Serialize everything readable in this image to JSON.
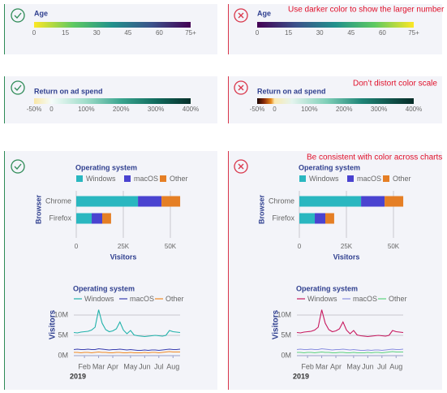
{
  "chart_data": [
    {
      "type": "colorscale",
      "title": "Age",
      "xlim": [
        0,
        75
      ],
      "xticks": [
        0,
        15,
        30,
        45,
        60,
        {
          "value": 75,
          "label": "75+"
        }
      ],
      "color_stops": [
        [
          0,
          "#fde725"
        ],
        [
          18.75,
          "#5ec962"
        ],
        [
          37.5,
          "#21918c"
        ],
        [
          56.25,
          "#3b528b"
        ],
        [
          75,
          "#440154"
        ]
      ]
    },
    {
      "type": "colorscale",
      "title": "Age",
      "annotation": "Use darker color to show the larger number",
      "xlim": [
        0,
        75
      ],
      "xticks": [
        0,
        15,
        30,
        45,
        60,
        {
          "value": 75,
          "label": "75+"
        }
      ],
      "color_stops": [
        [
          0,
          "#440154"
        ],
        [
          18.75,
          "#3b528b"
        ],
        [
          37.5,
          "#21918c"
        ],
        [
          56.25,
          "#5ec962"
        ],
        [
          75,
          "#fde725"
        ]
      ]
    },
    {
      "type": "colorscale",
      "title": "Return on ad spend",
      "xlim": [
        -50,
        400
      ],
      "xticks": [
        {
          "value": -50,
          "label": "-50%"
        },
        0,
        {
          "value": 100,
          "label": "100%"
        },
        {
          "value": 200,
          "label": "200%"
        },
        {
          "value": 300,
          "label": "300%"
        },
        {
          "value": 400,
          "label": "400%"
        }
      ],
      "color_stops": [
        [
          -50,
          "#f9e7a6"
        ],
        [
          0,
          "#f4fbf9"
        ],
        [
          100,
          "#9fdcc9"
        ],
        [
          200,
          "#3aa58f"
        ],
        [
          300,
          "#116b5e"
        ],
        [
          400,
          "#07302b"
        ]
      ]
    },
    {
      "type": "colorscale",
      "title": "Return on ad spend",
      "annotation": "Don’t distort color scale",
      "xlim": [
        -50,
        400
      ],
      "xticks": [
        {
          "value": -50,
          "label": "-50%"
        },
        0,
        {
          "value": 100,
          "label": "100%"
        },
        {
          "value": 200,
          "label": "200%"
        },
        {
          "value": 300,
          "label": "300%"
        },
        {
          "value": 400,
          "label": "400%"
        }
      ],
      "color_stops": [
        [
          -50,
          "#1a0500"
        ],
        [
          -30,
          "#8a2b0a"
        ],
        [
          -10,
          "#e8891c"
        ],
        [
          0,
          "#fbe9b0"
        ],
        [
          50,
          "#e4f4ee"
        ],
        [
          150,
          "#7fcfb8"
        ],
        [
          250,
          "#1f8577"
        ],
        [
          400,
          "#062c28"
        ]
      ]
    },
    {
      "type": "bar",
      "orientation": "horizontal",
      "stacked": true,
      "title": "Operating system",
      "y_label": "Browser",
      "x_label": "Visitors",
      "categories": [
        "Chrome",
        "Firefox"
      ],
      "xlim": [
        0,
        55000
      ],
      "xticks": [
        0,
        {
          "value": 25000,
          "label": "25K"
        },
        {
          "value": 50000,
          "label": "50K"
        }
      ],
      "series": [
        {
          "name": "Windows",
          "color": "#2ab7c0",
          "values": [
            32800,
            8200
          ]
        },
        {
          "name": "macOS",
          "color": "#4a43d0",
          "values": [
            12500,
            5600
          ]
        },
        {
          "name": "Other",
          "color": "#e57f25",
          "values": [
            9900,
            4700
          ]
        }
      ]
    },
    {
      "type": "bar",
      "orientation": "horizontal",
      "stacked": true,
      "title": "Operating system",
      "y_label": "Browser",
      "x_label": "Visitors",
      "annotation": "Be consistent with color across charts",
      "categories": [
        "Chrome",
        "Firefox"
      ],
      "xlim": [
        0,
        55000
      ],
      "xticks": [
        0,
        {
          "value": 25000,
          "label": "25K"
        },
        {
          "value": 50000,
          "label": "50K"
        }
      ],
      "series": [
        {
          "name": "Windows",
          "color": "#2ab7c0",
          "values": [
            32800,
            8200
          ]
        },
        {
          "name": "macOS",
          "color": "#4a43d0",
          "values": [
            12500,
            5600
          ]
        },
        {
          "name": "Other",
          "color": "#e57f25",
          "values": [
            9900,
            4700
          ]
        }
      ]
    },
    {
      "type": "line",
      "title": "Operating system",
      "y_label": "Visitors",
      "x_sublabel": "2019",
      "categories": [
        null,
        null,
        null,
        "Feb",
        null,
        null,
        null,
        "Mar",
        null,
        null,
        null,
        "Apr",
        null,
        null,
        null,
        null,
        "May",
        null,
        null,
        null,
        "Jun",
        null,
        null,
        null,
        "Jul",
        null,
        null,
        null,
        "Aug",
        null,
        null
      ],
      "ylim": [
        0,
        12000000
      ],
      "yticks": [
        {
          "value": 0,
          "label": "0M"
        },
        {
          "value": 5000000,
          "label": "5M"
        },
        {
          "value": 10000000,
          "label": "10M"
        }
      ],
      "series": [
        {
          "name": "Windows",
          "color": "#20b2aa",
          "values": [
            5700000,
            5600000,
            5800000,
            5900000,
            6000000,
            6300000,
            7000000,
            11300000,
            8000000,
            6400000,
            5900000,
            6100000,
            6600000,
            8300000,
            6300000,
            5400000,
            6200000,
            5100000,
            4900000,
            4800000,
            4700000,
            4800000,
            4900000,
            5000000,
            4900000,
            4800000,
            5000000,
            6200000,
            5900000,
            5800000,
            5700000
          ]
        },
        {
          "name": "macOS",
          "color": "#3a3fb0",
          "values": [
            1500000,
            1600000,
            1500000,
            1500000,
            1600000,
            1500000,
            1500000,
            1700000,
            1600000,
            1500000,
            1400000,
            1500000,
            1500000,
            1600000,
            1500000,
            1400000,
            1500000,
            1400000,
            1300000,
            1300000,
            1400000,
            1300000,
            1400000,
            1400000,
            1300000,
            1400000,
            1500000,
            1600000,
            1500000,
            1500000,
            1600000
          ]
        },
        {
          "name": "Other",
          "color": "#f08a24",
          "values": [
            800000,
            800000,
            700000,
            800000,
            800000,
            700000,
            800000,
            900000,
            800000,
            800000,
            700000,
            700000,
            800000,
            800000,
            700000,
            700000,
            800000,
            700000,
            700000,
            700000,
            800000,
            700000,
            800000,
            800000,
            700000,
            800000,
            900000,
            1000000,
            900000,
            900000,
            900000
          ]
        }
      ]
    },
    {
      "type": "line",
      "title": "Operating system",
      "y_label": "Visitors",
      "x_sublabel": "2019",
      "categories": [
        null,
        null,
        null,
        "Feb",
        null,
        null,
        null,
        "Mar",
        null,
        null,
        null,
        "Apr",
        null,
        null,
        null,
        null,
        "May",
        null,
        null,
        null,
        "Jun",
        null,
        null,
        null,
        "Jul",
        null,
        null,
        null,
        "Aug",
        null,
        null
      ],
      "ylim": [
        0,
        12000000
      ],
      "yticks": [
        {
          "value": 0,
          "label": "0M"
        },
        {
          "value": 5000000,
          "label": "5M"
        },
        {
          "value": 10000000,
          "label": "10M"
        }
      ],
      "series": [
        {
          "name": "Windows",
          "color": "#c8185e",
          "values": [
            5700000,
            5600000,
            5800000,
            5900000,
            6000000,
            6300000,
            7000000,
            11300000,
            8000000,
            6400000,
            5900000,
            6100000,
            6600000,
            8300000,
            6300000,
            5400000,
            6200000,
            5100000,
            4900000,
            4800000,
            4700000,
            4800000,
            4900000,
            5000000,
            4900000,
            4800000,
            5000000,
            6200000,
            5900000,
            5800000,
            5700000
          ]
        },
        {
          "name": "macOS",
          "color": "#8a8fe0",
          "values": [
            1500000,
            1600000,
            1500000,
            1500000,
            1600000,
            1500000,
            1500000,
            1700000,
            1600000,
            1500000,
            1400000,
            1500000,
            1500000,
            1600000,
            1500000,
            1400000,
            1500000,
            1400000,
            1300000,
            1300000,
            1400000,
            1300000,
            1400000,
            1400000,
            1300000,
            1400000,
            1500000,
            1600000,
            1500000,
            1500000,
            1600000
          ]
        },
        {
          "name": "Other",
          "color": "#5cd27e",
          "values": [
            800000,
            800000,
            700000,
            800000,
            800000,
            700000,
            800000,
            900000,
            800000,
            800000,
            700000,
            700000,
            800000,
            800000,
            700000,
            700000,
            800000,
            700000,
            700000,
            700000,
            800000,
            700000,
            800000,
            800000,
            700000,
            800000,
            900000,
            1000000,
            900000,
            900000,
            900000
          ]
        }
      ]
    }
  ]
}
